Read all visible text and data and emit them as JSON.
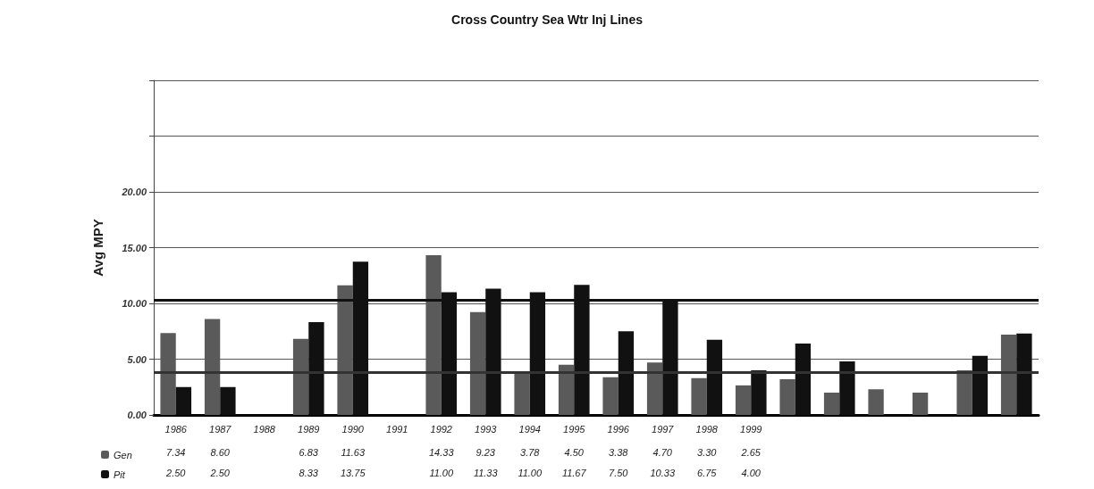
{
  "chart_data": {
    "type": "bar",
    "title": "Cross Country Sea Wtr Inj Lines",
    "ylabel": "Avg MPY",
    "categories": [
      "1986",
      "1987",
      "1988",
      "1989",
      "1990",
      "1991",
      "1992",
      "1993",
      "1994",
      "1995",
      "1996",
      "1997",
      "1998",
      "1999",
      null,
      null,
      null,
      null,
      null,
      null
    ],
    "series": [
      {
        "name": "Gen",
        "color": "#5a5a5a",
        "values": [
          7.34,
          8.6,
          null,
          6.83,
          11.63,
          null,
          14.33,
          9.23,
          3.78,
          4.5,
          3.38,
          4.7,
          3.3,
          2.65,
          3.2,
          2.0,
          2.3,
          2.0,
          4.0,
          7.2
        ],
        "value_labels": [
          "7.34",
          "8.60",
          null,
          "6.83",
          "11.63",
          null,
          "14.33",
          "9.23",
          "3.78",
          "4.50",
          "3.38",
          "4.70",
          "3.30",
          "2.65",
          null,
          null,
          null,
          null,
          null,
          null
        ]
      },
      {
        "name": "Pit",
        "color": "#111111",
        "values": [
          2.5,
          2.5,
          null,
          8.33,
          13.75,
          null,
          11.0,
          11.33,
          11.0,
          11.67,
          7.5,
          10.33,
          6.75,
          4.0,
          6.4,
          4.8,
          null,
          null,
          5.3,
          7.3
        ],
        "value_labels": [
          "2.50",
          "2.50",
          null,
          "8.33",
          "13.75",
          null,
          "11.00",
          "11.33",
          "11.00",
          "11.67",
          "7.50",
          "10.33",
          "6.75",
          "4.00",
          null,
          null,
          null,
          null,
          null,
          null
        ]
      }
    ],
    "ylim": [
      0,
      30
    ],
    "yticks": [
      {
        "value": 0,
        "label": "0.00"
      },
      {
        "value": 5,
        "label": "5.00"
      },
      {
        "value": 10,
        "label": "10.00"
      },
      {
        "value": 15,
        "label": "15.00"
      },
      {
        "value": 20,
        "label": "20.00"
      },
      {
        "value": 25,
        "label": null
      },
      {
        "value": 30,
        "label": null
      }
    ],
    "grid": "y",
    "legend": "bottom left",
    "ref_lines": [
      {
        "axis": "y",
        "value": 10.3,
        "color": "#111111"
      },
      {
        "axis": "y",
        "value": 3.8,
        "color": "#333333"
      }
    ]
  }
}
